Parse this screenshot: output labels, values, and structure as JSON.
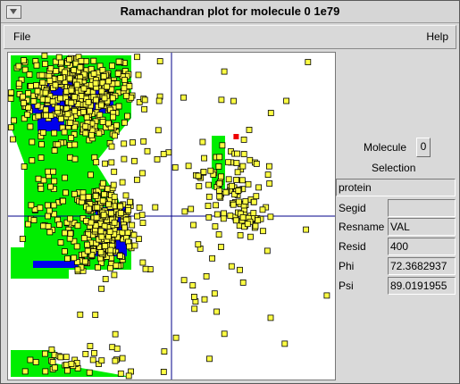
{
  "window": {
    "title": "Ramachandran plot for molecule 0 1e79"
  },
  "menubar": {
    "file_label": "File",
    "help_label": "Help"
  },
  "panel": {
    "molecule_label": "Molecule",
    "molecule_value": "0",
    "selection_label": "Selection",
    "selection_value": "protein",
    "fields": [
      {
        "label": "Segid",
        "value": ""
      },
      {
        "label": "Resname",
        "value": "VAL"
      },
      {
        "label": "Resid",
        "value": "400"
      },
      {
        "label": "Phi",
        "value": "72.3682937"
      },
      {
        "label": "Psi",
        "value": "89.0191955"
      }
    ]
  },
  "chart_data": {
    "type": "scatter",
    "xlim": [
      -180,
      180
    ],
    "ylim": [
      -180,
      180
    ],
    "grid": false,
    "colors": {
      "favored": "#0000ee",
      "allowed": "#00ee00",
      "point": "#ffff44",
      "point_edge": "#000000",
      "highlight": "#ee0000",
      "axis": "#000088"
    },
    "regions": {
      "allowed": [
        {
          "name": "beta-alpha-left",
          "points": [
            [
              -180,
              180
            ],
            [
              -135,
              180
            ],
            [
              -45,
              180
            ],
            [
              -45,
              110
            ],
            [
              -85,
              60
            ],
            [
              -60,
              20
            ],
            [
              -45,
              -30
            ],
            [
              -45,
              -60
            ],
            [
              -75,
              -60
            ],
            [
              -85,
              -60
            ],
            [
              -180,
              -60
            ],
            [
              -180,
              -35
            ],
            [
              -165,
              -35
            ],
            [
              -165,
              60
            ],
            [
              -180,
              100
            ]
          ]
        },
        {
          "name": "lower-left",
          "points": [
            [
              -180,
              -150
            ],
            [
              -130,
              -150
            ],
            [
              -130,
              -165
            ],
            [
              -45,
              -180
            ],
            [
              -180,
              -180
            ]
          ]
        },
        {
          "name": "alpha-right",
          "points": [
            [
              45,
              90
            ],
            [
              60,
              90
            ],
            [
              60,
              30
            ],
            [
              45,
              30
            ]
          ]
        },
        {
          "name": "alpha-right-slope",
          "points": [
            [
              45,
              90
            ],
            [
              60,
              80
            ],
            [
              60,
              50
            ],
            [
              45,
              60
            ]
          ]
        },
        {
          "name": "beta-low-left",
          "points": [
            [
              -180,
              -35
            ],
            [
              -115,
              -35
            ],
            [
              -115,
              -70
            ],
            [
              -180,
              -70
            ]
          ]
        }
      ],
      "favored": [
        {
          "name": "beta-core",
          "points": [
            [
              -160,
              125
            ],
            [
              -120,
              125
            ],
            [
              -120,
              95
            ],
            [
              -150,
              95
            ],
            [
              -150,
              115
            ],
            [
              -160,
              115
            ]
          ]
        },
        {
          "name": "beta-inner",
          "points": [
            [
              -140,
              150
            ],
            [
              -65,
              150
            ],
            [
              -65,
              115
            ],
            [
              -140,
              115
            ]
          ]
        },
        {
          "name": "alpha-core",
          "points": [
            [
              -85,
              10
            ],
            [
              -50,
              10
            ],
            [
              -50,
              -45
            ],
            [
              -85,
              -45
            ]
          ]
        },
        {
          "name": "low-band",
          "points": [
            [
              -155,
              -50
            ],
            [
              -105,
              -50
            ],
            [
              -105,
              -58
            ],
            [
              -155,
              -58
            ]
          ]
        }
      ]
    },
    "points": [],
    "highlight_point": {
      "phi": 72.3682937,
      "psi": 89.0191955
    },
    "clusters": [
      {
        "phi": -110,
        "psi": 140,
        "sphi": 35,
        "spsi": 22,
        "n": 360
      },
      {
        "phi": -90,
        "psi": 110,
        "sphi": 25,
        "spsi": 30,
        "n": 100
      },
      {
        "phi": -75,
        "psi": -10,
        "sphi": 18,
        "spsi": 25,
        "n": 280
      },
      {
        "phi": -140,
        "psi": 10,
        "sphi": 20,
        "spsi": 30,
        "n": 40
      },
      {
        "phi": 60,
        "psi": 35,
        "sphi": 15,
        "spsi": 25,
        "n": 60
      },
      {
        "phi": 85,
        "psi": 0,
        "sphi": 15,
        "spsi": 15,
        "n": 40
      },
      {
        "phi": -100,
        "psi": -165,
        "sphi": 40,
        "spsi": 10,
        "n": 40
      },
      {
        "phi": 0,
        "psi": 0,
        "sphi": 120,
        "spsi": 130,
        "n": 150
      }
    ]
  }
}
